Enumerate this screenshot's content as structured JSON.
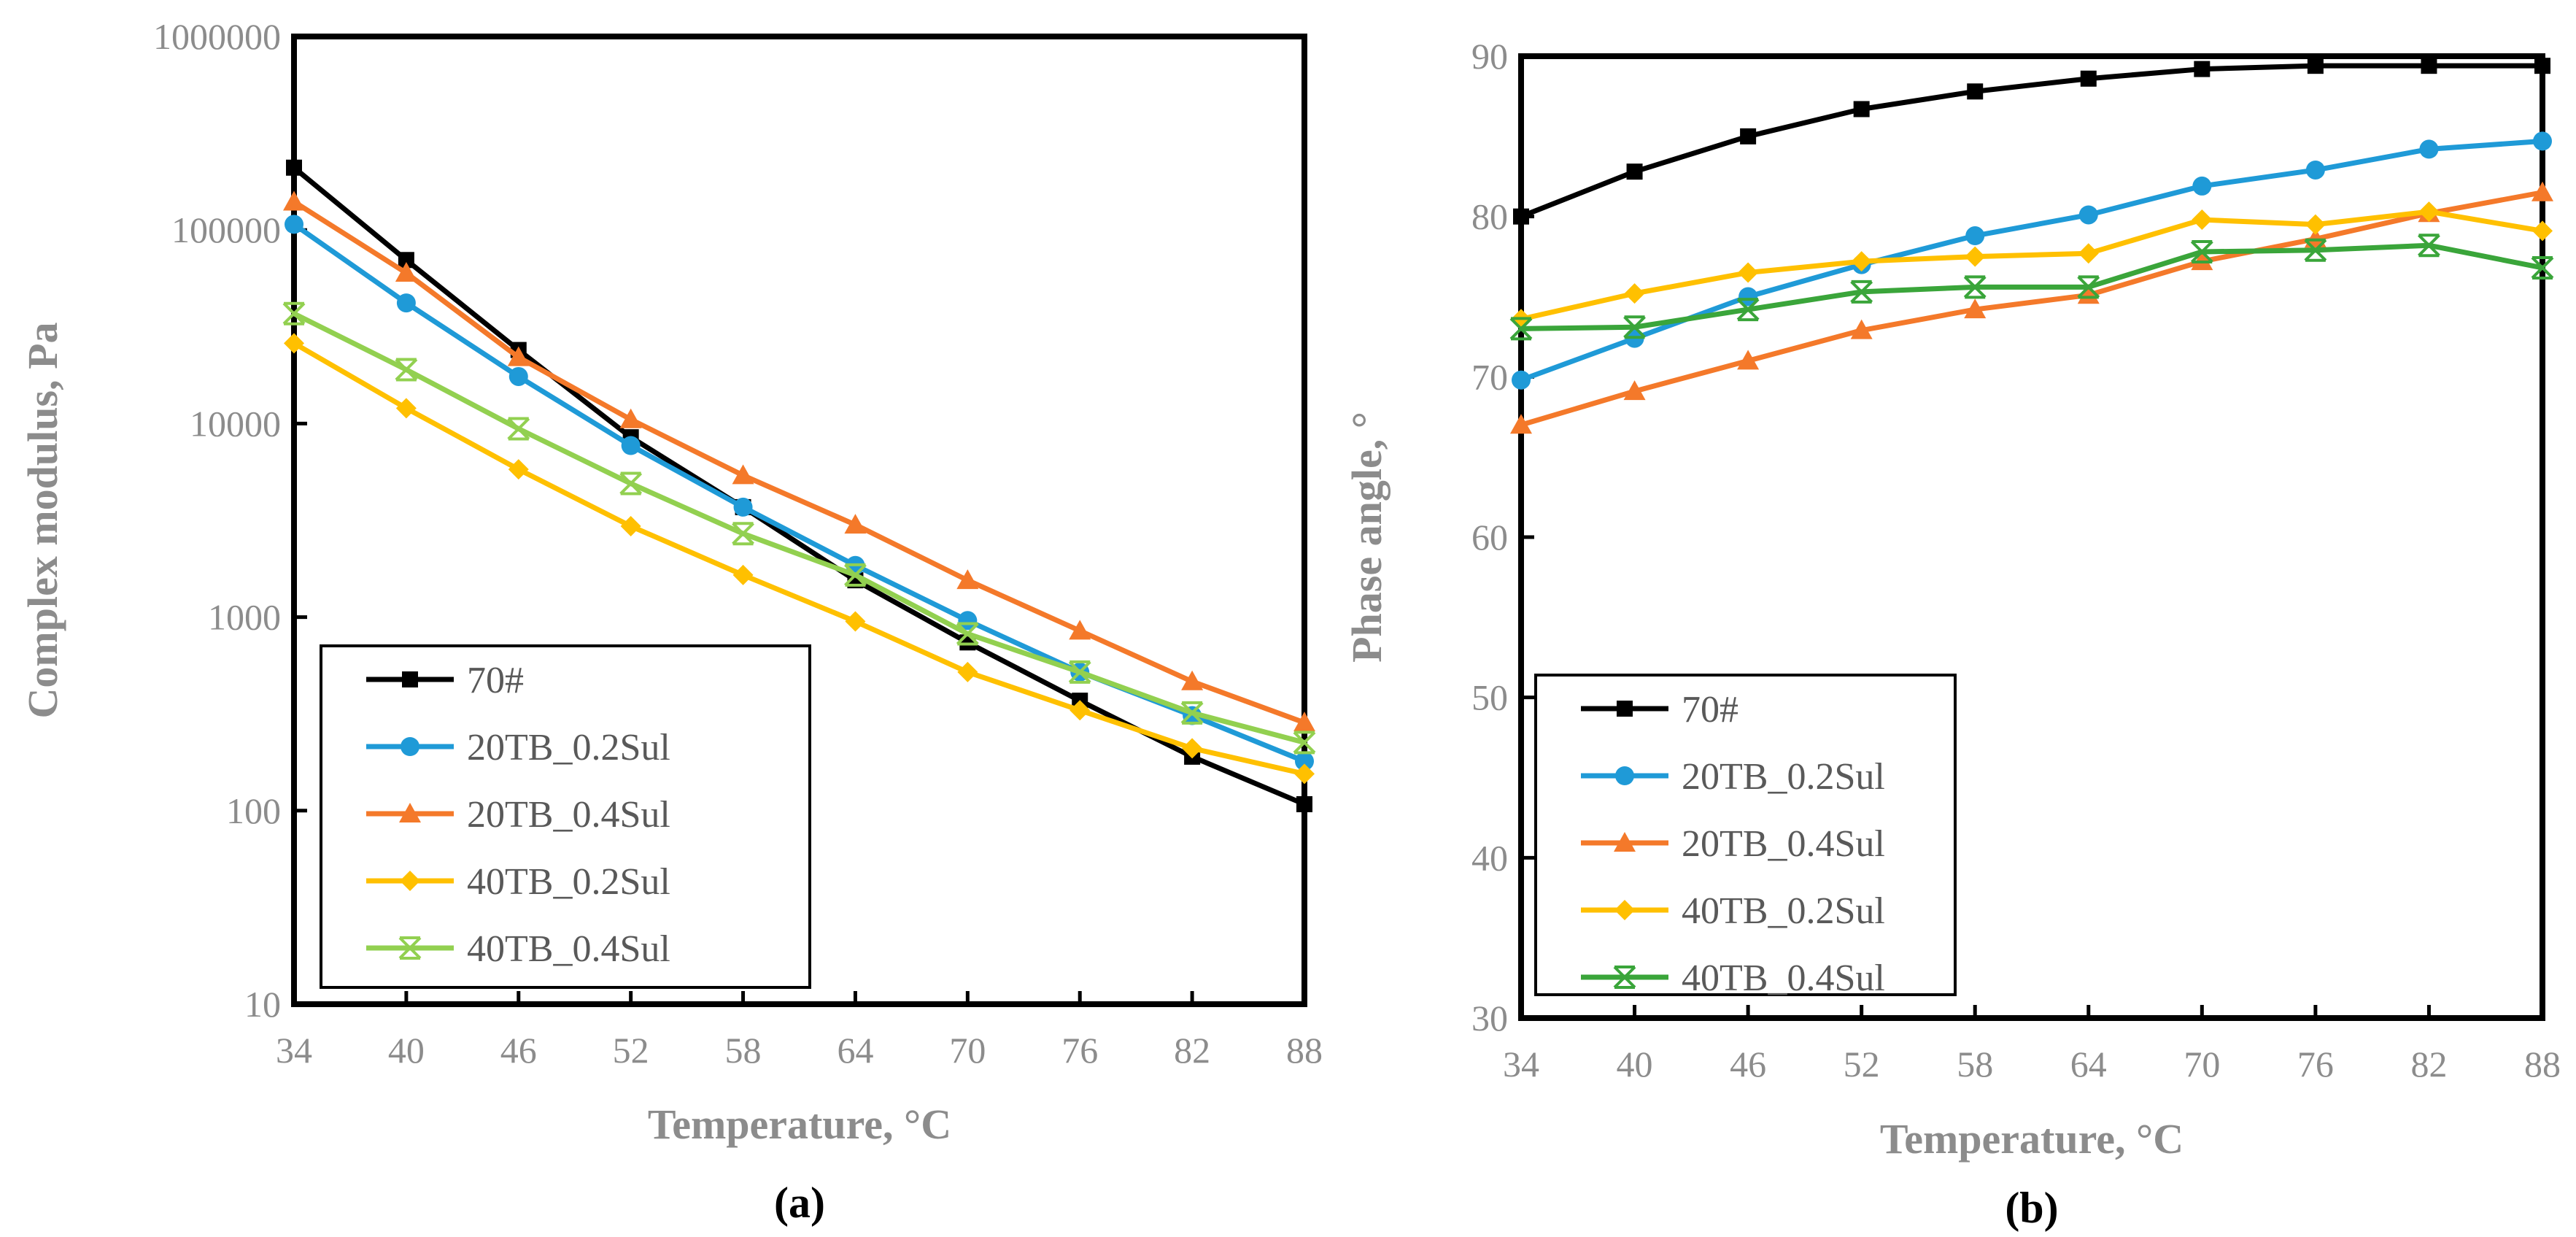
{
  "chart_data": [
    {
      "type": "line",
      "panel_label": "(a)",
      "xlabel": "Temperature, °C",
      "ylabel": "Complex modulus, Pa",
      "yscale": "log",
      "ylim": [
        10,
        1000000
      ],
      "xlim": [
        34,
        88
      ],
      "x": [
        34,
        40,
        46,
        52,
        58,
        64,
        70,
        76,
        82,
        88
      ],
      "x_ticks": [
        "34",
        "40",
        "46",
        "52",
        "58",
        "64",
        "70",
        "76",
        "82",
        "88"
      ],
      "y_ticks": [
        {
          "value": 10,
          "label": "10"
        },
        {
          "value": 100,
          "label": "100"
        },
        {
          "value": 1000,
          "label": "1000"
        },
        {
          "value": 10000,
          "label": "10000"
        },
        {
          "value": 100000,
          "label": "100000"
        },
        {
          "value": 1000000,
          "label": "1000000"
        }
      ],
      "legend_position": "bottom-left",
      "series": [
        {
          "name": "70#",
          "color": "#000000",
          "marker": "square",
          "values": [
            210000,
            70000,
            24000,
            8500,
            3700,
            1550,
            740,
            370,
            190,
            108
          ]
        },
        {
          "name": "20TB_0.2Sul",
          "color": "#1f9ad7",
          "marker": "circle",
          "values": [
            107000,
            42000,
            17500,
            7700,
            3700,
            1850,
            960,
            520,
            310,
            180
          ]
        },
        {
          "name": "20TB_0.4Sul",
          "color": "#f4792a",
          "marker": "triangle",
          "values": [
            140000,
            60000,
            22000,
            10500,
            5400,
            3000,
            1550,
            850,
            465,
            285
          ]
        },
        {
          "name": "40TB_0.2Sul",
          "color": "#ffc000",
          "marker": "diamond",
          "values": [
            26000,
            12000,
            5800,
            2950,
            1650,
            950,
            520,
            330,
            210,
            155
          ]
        },
        {
          "name": "40TB_0.4Sul",
          "color": "#92d050",
          "marker": "star",
          "values": [
            37000,
            19000,
            9400,
            4900,
            2700,
            1650,
            820,
            520,
            320,
            225
          ]
        }
      ]
    },
    {
      "type": "line",
      "panel_label": "(b)",
      "xlabel": "Temperature, °C",
      "ylabel": "Phase angle, °",
      "yscale": "linear",
      "ylim": [
        30,
        90
      ],
      "xlim": [
        34,
        88
      ],
      "x": [
        34,
        40,
        46,
        52,
        58,
        64,
        70,
        76,
        82,
        88
      ],
      "x_ticks": [
        "34",
        "40",
        "46",
        "52",
        "58",
        "64",
        "70",
        "76",
        "82",
        "88"
      ],
      "y_ticks": [
        {
          "value": 30,
          "label": "30"
        },
        {
          "value": 40,
          "label": "40"
        },
        {
          "value": 50,
          "label": "50"
        },
        {
          "value": 60,
          "label": "60"
        },
        {
          "value": 70,
          "label": "70"
        },
        {
          "value": 80,
          "label": "80"
        },
        {
          "value": 90,
          "label": "90"
        }
      ],
      "legend_position": "bottom-left",
      "series": [
        {
          "name": "70#",
          "color": "#000000",
          "marker": "square",
          "values": [
            80.0,
            82.8,
            85.0,
            86.7,
            87.8,
            88.6,
            89.2,
            89.4,
            89.4,
            89.4
          ]
        },
        {
          "name": "20TB_0.2Sul",
          "color": "#1f9ad7",
          "marker": "circle",
          "values": [
            69.8,
            72.4,
            75.0,
            77.0,
            78.8,
            80.1,
            81.9,
            82.9,
            84.2,
            84.7
          ]
        },
        {
          "name": "20TB_0.4Sul",
          "color": "#f4792a",
          "marker": "triangle",
          "values": [
            67.0,
            69.1,
            71.0,
            72.9,
            74.2,
            75.1,
            77.2,
            78.6,
            80.2,
            81.5
          ]
        },
        {
          "name": "40TB_0.2Sul",
          "color": "#ffc000",
          "marker": "diamond",
          "values": [
            73.6,
            75.2,
            76.5,
            77.2,
            77.5,
            77.7,
            79.8,
            79.5,
            80.3,
            79.1
          ]
        },
        {
          "name": "40TB_0.4Sul",
          "color": "#3aa53a",
          "marker": "star",
          "values": [
            73.0,
            73.1,
            74.2,
            75.3,
            75.6,
            75.6,
            77.8,
            77.9,
            78.2,
            76.8
          ]
        }
      ]
    }
  ]
}
